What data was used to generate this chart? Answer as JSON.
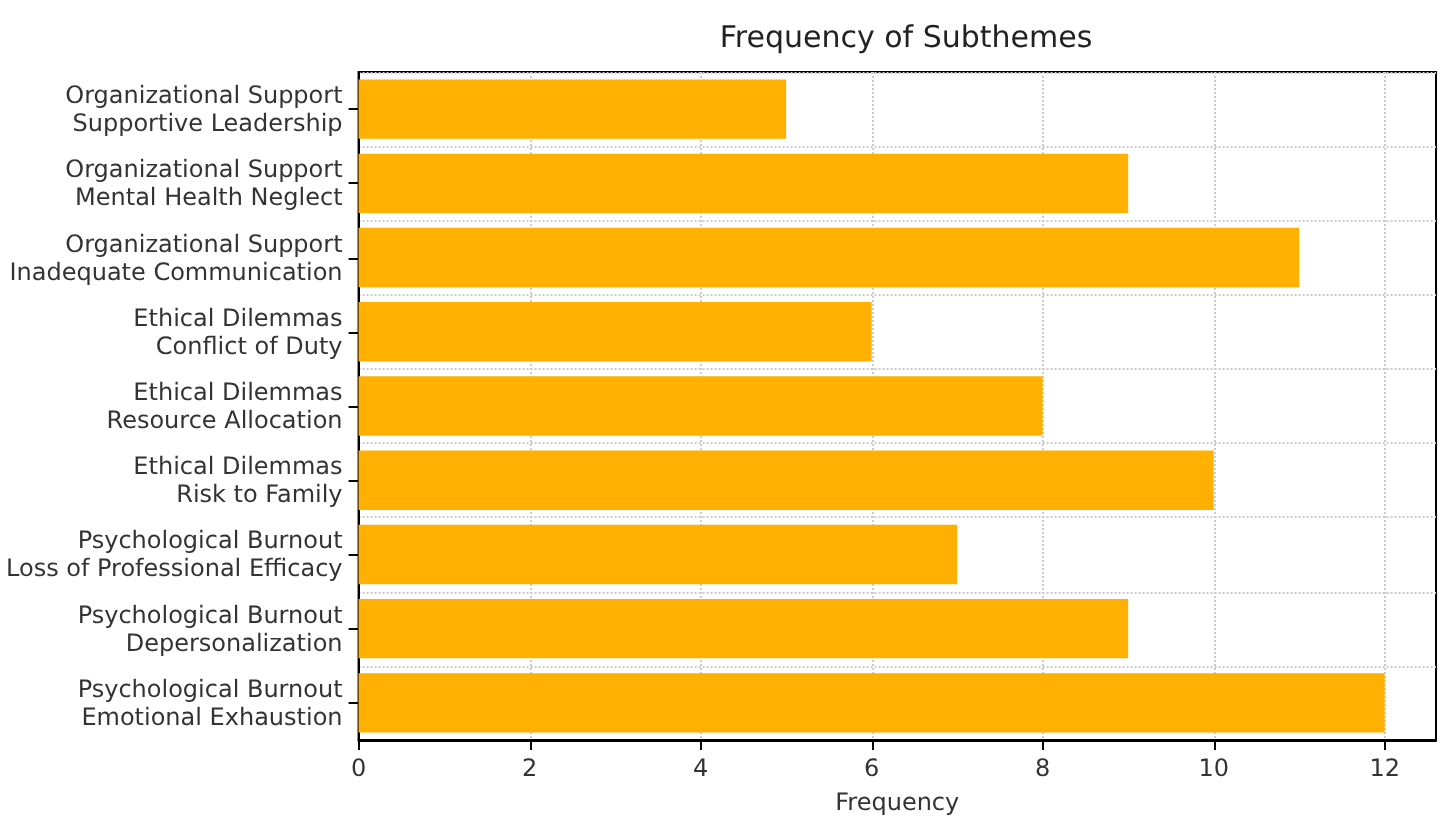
{
  "chart_data": {
    "type": "bar",
    "orientation": "horizontal",
    "title": "Frequency of Subthemes",
    "xlabel": "Frequency",
    "categories": [
      "Organizational Support\nSupportive Leadership",
      "Organizational Support\nMental Health Neglect",
      "Organizational Support\nInadequate Communication",
      "Ethical Dilemmas\nConflict of Duty",
      "Ethical Dilemmas\nResource Allocation",
      "Ethical Dilemmas\nRisk to Family",
      "Psychological Burnout\nLoss of Professional Efficacy",
      "Psychological Burnout\nDepersonalization",
      "Psychological Burnout\nEmotional Exhaustion"
    ],
    "values": [
      5,
      9,
      11,
      6,
      8,
      10,
      7,
      9,
      12
    ],
    "color": "#ffb000",
    "xlim": [
      0,
      12.6
    ],
    "xticks": [
      0,
      2,
      4,
      6,
      8,
      10,
      12
    ],
    "grid": true
  }
}
